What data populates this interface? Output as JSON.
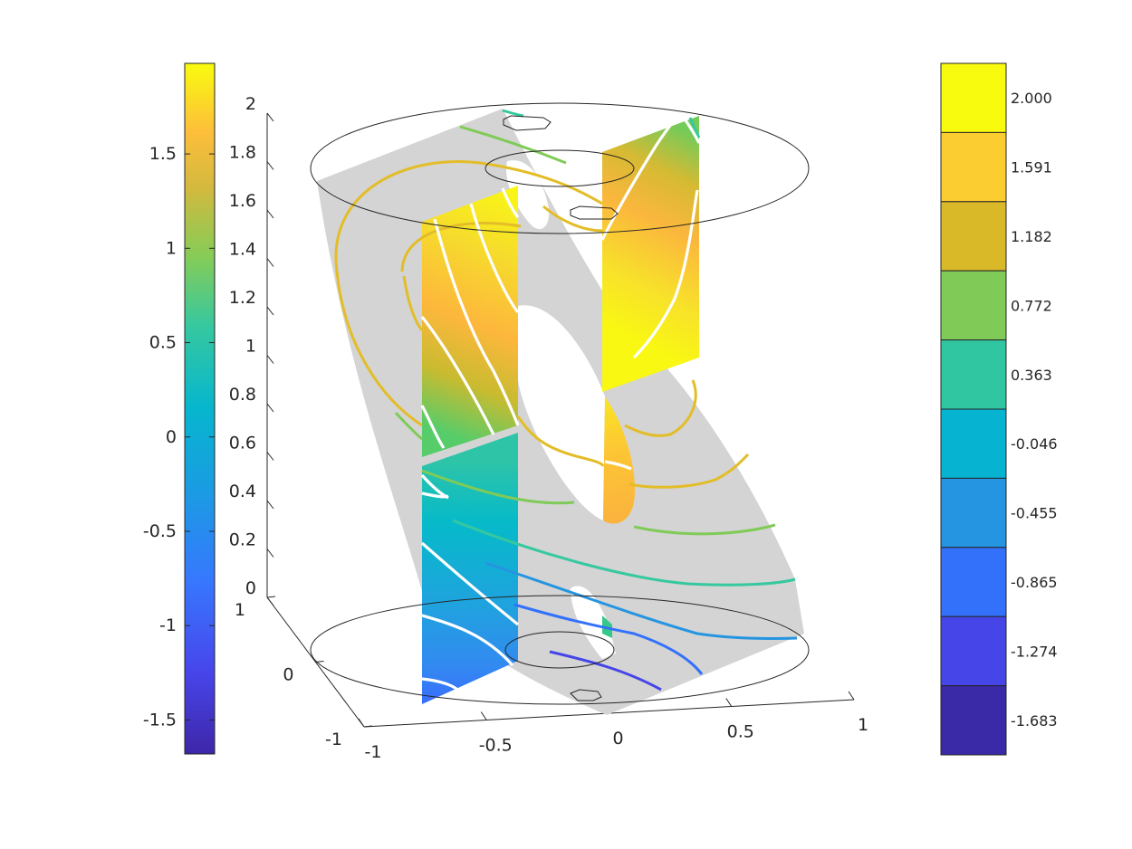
{
  "chart_data": [
    {
      "type": "surface-3d-slice",
      "title": "",
      "xlabel": "",
      "ylabel": "",
      "zlabel": "",
      "x_ticks": [
        "-1",
        "-0.5",
        "0",
        "0.5",
        "1"
      ],
      "y_ticks": [
        "-1",
        "0",
        "1"
      ],
      "z_ticks": [
        "0",
        "0.2",
        "0.4",
        "0.6",
        "0.8",
        "1",
        "1.2",
        "1.4",
        "1.6",
        "1.8",
        "2"
      ],
      "xlim": [
        -1,
        1
      ],
      "ylim": [
        -1,
        1
      ],
      "zlim": [
        0,
        2
      ],
      "grid": false,
      "surfaces": [
        {
          "id": "gray-helicoid-slice",
          "color": "#d4d4d4"
        },
        {
          "id": "vertical-plane-x-minus-0.6",
          "color_range": [
            -1.3,
            1.9
          ]
        },
        {
          "id": "vertical-plane-x-0",
          "color_range": [
            0.6,
            1.95
          ]
        }
      ],
      "contour_levels": [
        -1.683,
        -1.274,
        -0.865,
        -0.455,
        -0.046,
        0.363,
        0.772,
        1.182,
        1.591,
        2.0
      ]
    },
    {
      "type": "colorbar",
      "placement": "left",
      "colormap": "parula",
      "range": [
        -1.68,
        1.98
      ],
      "ticks": [
        "-1.5",
        "-1",
        "-0.5",
        "0",
        "0.5",
        "1",
        "1.5"
      ],
      "tick_values": [
        -1.5,
        -1,
        -0.5,
        0,
        0.5,
        1,
        1.5
      ]
    },
    {
      "type": "colorbar",
      "placement": "right",
      "colormap": "parula-discrete",
      "levels": 10,
      "ticks": [
        "2.000",
        "1.591",
        "1.182",
        "0.772",
        "0.363",
        "-0.046",
        "-0.455",
        "-0.865",
        "-1.274",
        "-1.683"
      ],
      "colors": [
        "#f9fb0e",
        "#fccd30",
        "#dab929",
        "#80cb58",
        "#30c6a1",
        "#06b4d2",
        "#2595e1",
        "#3371fb",
        "#4545e8",
        "#3a2aa7"
      ]
    }
  ]
}
